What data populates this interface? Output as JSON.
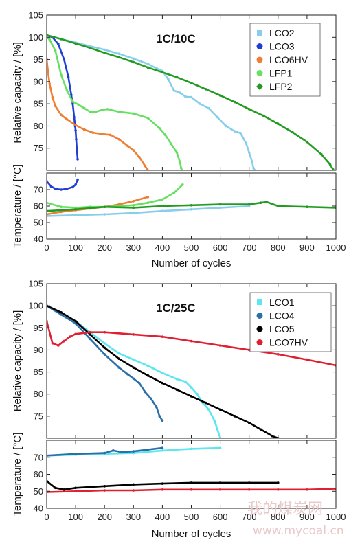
{
  "chart_data": [
    {
      "type": "line",
      "title": "1C/10C",
      "xlabel": "Number of cycles",
      "xlim": [
        0,
        1000
      ],
      "xticks": [
        0,
        100,
        200,
        300,
        400,
        500,
        600,
        700,
        800,
        900,
        1000
      ],
      "capacity": {
        "ylabel": "Relative capacity / [%]",
        "ylim": [
          70,
          105
        ],
        "yticks": [
          75,
          80,
          85,
          90,
          95,
          100,
          105
        ],
        "legend_position": "top-right",
        "series": [
          {
            "name": "LCO2",
            "color": "#87ceeb",
            "marker": "square",
            "x": [
              0,
              50,
              100,
              150,
              200,
              250,
              300,
              350,
              380,
              400,
              420,
              440,
              460,
              480,
              500,
              530,
              560,
              590,
              620,
              650,
              670,
              690,
              700,
              710,
              715,
              720
            ],
            "y": [
              100.5,
              99.6,
              98.8,
              98,
              97.2,
              96.3,
              95.2,
              94,
              93,
              92.4,
              90.6,
              88,
              87.5,
              86.6,
              86.5,
              85,
              84,
              82,
              80,
              78.8,
              78.4,
              76,
              74,
              72,
              70.5,
              70
            ]
          },
          {
            "name": "LCO3",
            "color": "#1f3fd4",
            "marker": "circle",
            "x": [
              0,
              20,
              40,
              60,
              75,
              85,
              90,
              95,
              98,
              100,
              102,
              104,
              107
            ],
            "y": [
              100.5,
              100,
              98.5,
              95,
              91,
              87,
              85,
              82,
              80,
              79,
              77,
              75,
              72.5
            ]
          },
          {
            "name": "LCO6HV",
            "color": "#ef7d32",
            "marker": "circle",
            "x": [
              0,
              5,
              10,
              20,
              30,
              50,
              70,
              100,
              130,
              160,
              190,
              220,
              250,
              280,
              300,
              320,
              340,
              350
            ],
            "y": [
              95,
              92,
              89.5,
              86.5,
              84.5,
              82.5,
              81.5,
              80.2,
              79.2,
              78.5,
              78.2,
              78,
              77,
              75.5,
              74.5,
              73,
              71,
              70
            ]
          },
          {
            "name": "LFP1",
            "color": "#66e060",
            "marker": "circle",
            "x": [
              0,
              10,
              30,
              50,
              70,
              90,
              110,
              130,
              150,
              170,
              190,
              210,
              250,
              300,
              350,
              390,
              410,
              430,
              450,
              460,
              465,
              468
            ],
            "y": [
              100,
              99.5,
              97,
              91.5,
              88,
              85.5,
              84.8,
              84,
              83.2,
              83.2,
              83.6,
              83.8,
              83.2,
              82.8,
              81.8,
              79.5,
              78,
              76,
              74,
              72,
              70.5,
              70
            ]
          },
          {
            "name": "LFP2",
            "color": "#239b23",
            "marker": "diamond",
            "x": [
              0,
              50,
              100,
              150,
              200,
              250,
              300,
              350,
              400,
              450,
              500,
              550,
              600,
              650,
              700,
              750,
              800,
              850,
              900,
              950,
              980,
              990
            ],
            "y": [
              100.5,
              99.6,
              98.6,
              97.6,
              96.5,
              95.5,
              94.4,
              93.2,
              92.1,
              91,
              89.7,
              88.3,
              86.9,
              85.4,
              83.8,
              82.3,
              80.5,
              78.6,
              76.4,
              73.6,
              71.3,
              70.2
            ]
          }
        ]
      },
      "temperature": {
        "ylabel": "Temperature / [°C]",
        "ylim": [
          40,
          80
        ],
        "yticks": [
          40,
          50,
          60,
          70
        ],
        "series": [
          {
            "name": "LCO2",
            "x": [
              0,
              100,
              200,
              300,
              400,
              500,
              600,
              700
            ],
            "y": [
              54,
              54.5,
              55,
              55.8,
              57,
              58,
              59,
              60
            ]
          },
          {
            "name": "LCO3",
            "x": [
              0,
              15,
              30,
              50,
              70,
              90,
              100,
              107
            ],
            "y": [
              75,
              72,
              70.5,
              70,
              70.5,
              71.5,
              73,
              76
            ]
          },
          {
            "name": "LCO6HV",
            "x": [
              0,
              50,
              100,
              150,
              200,
              250,
              300,
              350
            ],
            "y": [
              55,
              56.5,
              57.5,
              58.5,
              59.5,
              61,
              63,
              65.5
            ]
          },
          {
            "name": "LFP1",
            "x": [
              0,
              50,
              100,
              150,
              200,
              250,
              300,
              350,
              400,
              440,
              470
            ],
            "y": [
              62,
              59.5,
              59,
              59.5,
              59.5,
              60,
              60.5,
              62,
              64,
              68,
              73
            ]
          },
          {
            "name": "LFP2",
            "x": [
              0,
              100,
              200,
              300,
              400,
              500,
              600,
              700,
              740,
              760,
              800,
              900,
              1000
            ],
            "y": [
              57,
              58,
              59.5,
              59,
              60,
              60.5,
              61,
              61,
              62,
              62.5,
              60,
              59.5,
              59
            ]
          }
        ]
      }
    },
    {
      "type": "line",
      "title": "1C/25C",
      "xlabel": "Number of cycles",
      "xlim": [
        0,
        1000
      ],
      "xticks": [
        0,
        100,
        200,
        300,
        400,
        500,
        600,
        700,
        800,
        900,
        1000
      ],
      "capacity": {
        "ylabel": "Relative capacity / [%]",
        "ylim": [
          70,
          105
        ],
        "yticks": [
          75,
          80,
          85,
          90,
          95,
          100,
          105
        ],
        "legend_position": "top-right",
        "series": [
          {
            "name": "LCO1",
            "color": "#5ce6f2",
            "marker": "square",
            "x": [
              0,
              50,
              100,
              150,
              200,
              250,
              300,
              350,
              400,
              450,
              480,
              500,
              520,
              540,
              560,
              580,
              590,
              600
            ],
            "y": [
              100,
              98.5,
              96.5,
              94,
              91.5,
              89.2,
              87.8,
              86.4,
              84.8,
              83.4,
              82.8,
              81.5,
              80,
              78,
              76.5,
              74,
              72,
              70
            ]
          },
          {
            "name": "LCO4",
            "color": "#2a6fa8",
            "marker": "circle",
            "x": [
              0,
              50,
              100,
              150,
              200,
              250,
              280,
              300,
              320,
              340,
              360,
              380,
              390,
              400
            ],
            "y": [
              100,
              98,
              96,
              92.5,
              89,
              86,
              84.5,
              83.5,
              82.5,
              80.5,
              79,
              77,
              75,
              74
            ]
          },
          {
            "name": "LCO5",
            "color": "#000000",
            "marker": "circle",
            "x": [
              0,
              50,
              100,
              150,
              200,
              250,
              300,
              350,
              400,
              450,
              500,
              550,
              600,
              650,
              700,
              740,
              780,
              800
            ],
            "y": [
              100,
              98.5,
              96.5,
              93.5,
              90.5,
              88,
              86,
              84.2,
              82.5,
              81,
              79.5,
              78,
              76.5,
              75,
              73.5,
              72,
              70.5,
              70
            ]
          },
          {
            "name": "LCO7HV",
            "color": "#e02030",
            "marker": "circle",
            "x": [
              0,
              20,
              40,
              60,
              80,
              100,
              150,
              200,
              300,
              400,
              500,
              600,
              700,
              800,
              900,
              1000
            ],
            "y": [
              96.5,
              91.5,
              91,
              92,
              93,
              93.6,
              94,
              94,
              93.5,
              93,
              92,
              91,
              90,
              89,
              87.8,
              86.5
            ]
          }
        ]
      },
      "temperature": {
        "ylabel": "Temperature / [°C]",
        "ylim": [
          40,
          80
        ],
        "yticks": [
          40,
          50,
          60,
          70
        ],
        "series": [
          {
            "name": "LCO1",
            "x": [
              0,
              100,
              200,
              300,
              400,
              500,
              600
            ],
            "y": [
              71,
              71.5,
              72,
              72.5,
              74,
              75,
              75.5
            ]
          },
          {
            "name": "LCO4",
            "x": [
              0,
              100,
              200,
              230,
              260,
              300,
              350,
              400
            ],
            "y": [
              71,
              72,
              72.5,
              74,
              73,
              73.5,
              74.5,
              75.5
            ]
          },
          {
            "name": "LCO5",
            "x": [
              0,
              30,
              60,
              100,
              200,
              300,
              400,
              500,
              600,
              700,
              800
            ],
            "y": [
              56,
              52,
              51,
              52,
              53,
              54,
              54.5,
              55,
              55,
              55,
              55
            ]
          },
          {
            "name": "LCO7HV",
            "x": [
              0,
              100,
              200,
              300,
              400,
              500,
              600,
              700,
              800,
              900,
              1000
            ],
            "y": [
              49.5,
              50,
              50.5,
              50.5,
              51,
              51,
              51,
              51,
              51,
              51,
              51.5
            ]
          }
        ]
      }
    }
  ],
  "watermark": {
    "text": "我的煤炭网",
    "url": "www.mycoal.cn"
  }
}
